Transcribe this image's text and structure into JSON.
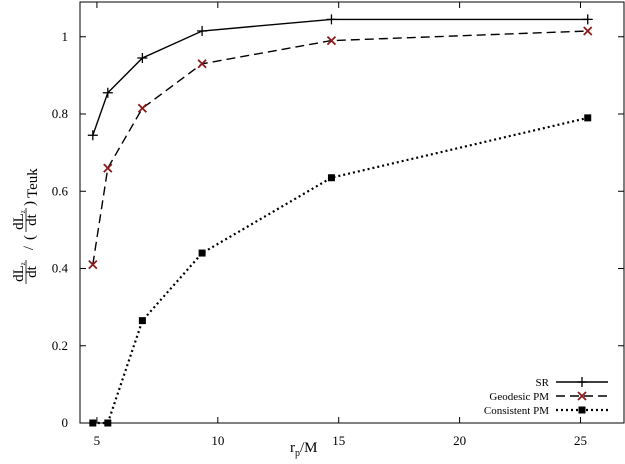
{
  "chart_data": {
    "type": "line",
    "title": "",
    "xlabel": {
      "main": "r",
      "sub": "p",
      "suffix": "/M"
    },
    "ylabel": {
      "num1": "dL",
      "sub1": "z",
      "den1": "dt",
      "num2": "dL",
      "sub2": "z",
      "den2": "dt",
      "outer_sub": "Teuk"
    },
    "xlim": [
      4.3,
      26.8
    ],
    "ylim": [
      0,
      1.09
    ],
    "xticks": [
      5,
      10,
      15,
      20,
      25
    ],
    "yticks": [
      0,
      0.2,
      0.4,
      0.6,
      0.8,
      1
    ],
    "legend_position": "bottom-right",
    "series": [
      {
        "name": "SR",
        "style": "solid",
        "marker": "plus",
        "color": "#000000",
        "x": [
          4.83,
          5.45,
          6.88,
          9.35,
          14.7,
          25.3
        ],
        "y": [
          0.745,
          0.855,
          0.945,
          1.015,
          1.045,
          1.045
        ]
      },
      {
        "name": "Geodesic PM",
        "style": "dashed",
        "marker": "cross",
        "color": "#8b1a1a",
        "x": [
          4.83,
          5.45,
          6.88,
          9.35,
          14.7,
          25.3
        ],
        "y": [
          0.41,
          0.66,
          0.815,
          0.93,
          0.99,
          1.015
        ]
      },
      {
        "name": "Consistent PM",
        "style": "dotted",
        "marker": "square",
        "color": "#000000",
        "x": [
          4.83,
          5.45,
          6.88,
          9.35,
          14.7,
          25.3
        ],
        "y": [
          0.0,
          0.0,
          0.265,
          0.44,
          0.635,
          0.79
        ]
      }
    ]
  }
}
